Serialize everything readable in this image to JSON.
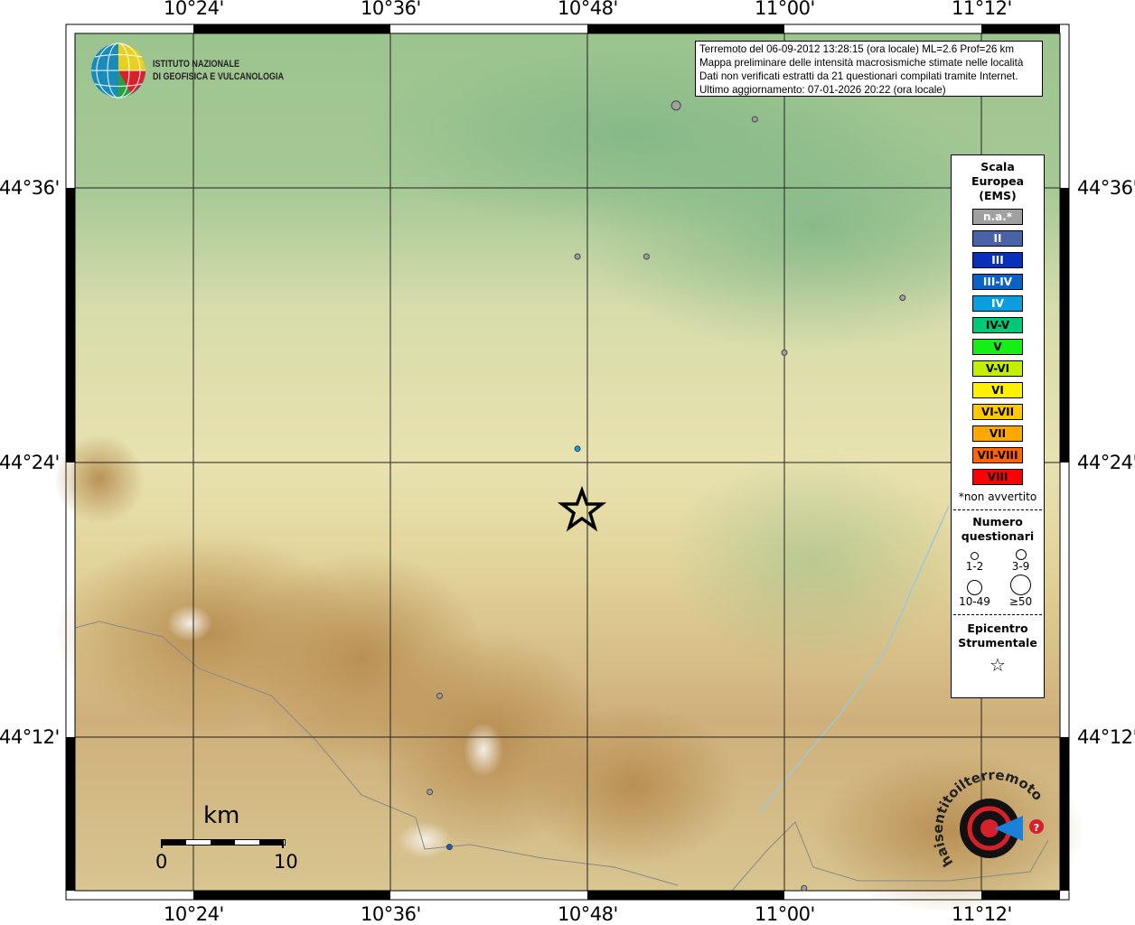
{
  "map": {
    "lon_labels": [
      "10°24'",
      "10°36'",
      "10°48'",
      "11°00'",
      "11°12'"
    ],
    "lat_labels": [
      "44°36'",
      "44°24'",
      "44°12'"
    ],
    "epicenter": {
      "lon": 10.815,
      "lat": 44.35,
      "icon": "star-icon"
    },
    "observations": [
      {
        "lon": 10.89,
        "lat": 44.66,
        "class": "n.a.*",
        "size": "3-9"
      },
      {
        "lon": 10.97,
        "lat": 44.65,
        "class": "n.a.*",
        "size": "1-2"
      },
      {
        "lon": 10.79,
        "lat": 44.55,
        "class": "n.a.*",
        "size": "1-2"
      },
      {
        "lon": 10.86,
        "lat": 44.55,
        "class": "n.a.*",
        "size": "1-2"
      },
      {
        "lon": 11.12,
        "lat": 44.52,
        "class": "n.a.*",
        "size": "1-2"
      },
      {
        "lon": 11.0,
        "lat": 44.48,
        "class": "n.a.*",
        "size": "1-2"
      },
      {
        "lon": 10.79,
        "lat": 44.41,
        "class": "IV",
        "size": "1-2"
      },
      {
        "lon": 10.65,
        "lat": 44.23,
        "class": "n.a.*",
        "size": "1-2"
      },
      {
        "lon": 10.64,
        "lat": 44.16,
        "class": "n.a.*",
        "size": "1-2"
      },
      {
        "lon": 10.66,
        "lat": 44.12,
        "class": "III-IV",
        "size": "1-2"
      },
      {
        "lon": 11.02,
        "lat": 44.09,
        "class": "n.a.*",
        "size": "1-2"
      }
    ]
  },
  "info": {
    "line1": "Terremoto del 06-09-2012 13:28:15 (ora locale) ML=2.6 Prof=26 km",
    "line2": "Mappa preliminare delle intensità macrosismiche stimate nelle località",
    "line3": "Dati non verificati estratti da 21 questionari compilati tramite Internet.",
    "line4": "Ultimo aggiornamento: 07-01-2026 20:22 (ora locale)"
  },
  "legend": {
    "title": [
      "Scala",
      "Europea",
      "(EMS)"
    ],
    "classes": [
      {
        "label": "n.a.*",
        "color": "#a0a0a0",
        "text": "#ffffff"
      },
      {
        "label": "II",
        "color": "#4a62a8",
        "text": "#ffffff"
      },
      {
        "label": "III",
        "color": "#0a2fb8",
        "text": "#ffffff"
      },
      {
        "label": "III-IV",
        "color": "#0a62c8",
        "text": "#ffffff"
      },
      {
        "label": "IV",
        "color": "#0a9ee0",
        "text": "#ffffff"
      },
      {
        "label": "IV-V",
        "color": "#00c878",
        "text": "#000000"
      },
      {
        "label": "V",
        "color": "#14f014",
        "text": "#000000"
      },
      {
        "label": "V-VI",
        "color": "#c4f000",
        "text": "#000000"
      },
      {
        "label": "VI",
        "color": "#fff000",
        "text": "#000000"
      },
      {
        "label": "VI-VII",
        "color": "#ffc800",
        "text": "#000000"
      },
      {
        "label": "VII",
        "color": "#ffa800",
        "text": "#000000"
      },
      {
        "label": "VII-VIII",
        "color": "#ff6400",
        "text": "#000000"
      },
      {
        "label": "VIII",
        "color": "#ff0000",
        "text": "#000000"
      }
    ],
    "note": "*non avvertito",
    "count_title": [
      "Numero",
      "questionari"
    ],
    "counts": [
      "1-2",
      "3-9",
      "10-49",
      "≥50"
    ],
    "epicenter_title": [
      "Epicentro",
      "Strumentale"
    ]
  },
  "logos": {
    "ingv": [
      "ISTITUTO NAZIONALE",
      "DI GEOFISICA E VULCANOLOGIA"
    ],
    "hsit": "www.haisentitoilterremoto.it"
  },
  "scalebar": {
    "unit": "km",
    "min": "0",
    "max": "10"
  }
}
